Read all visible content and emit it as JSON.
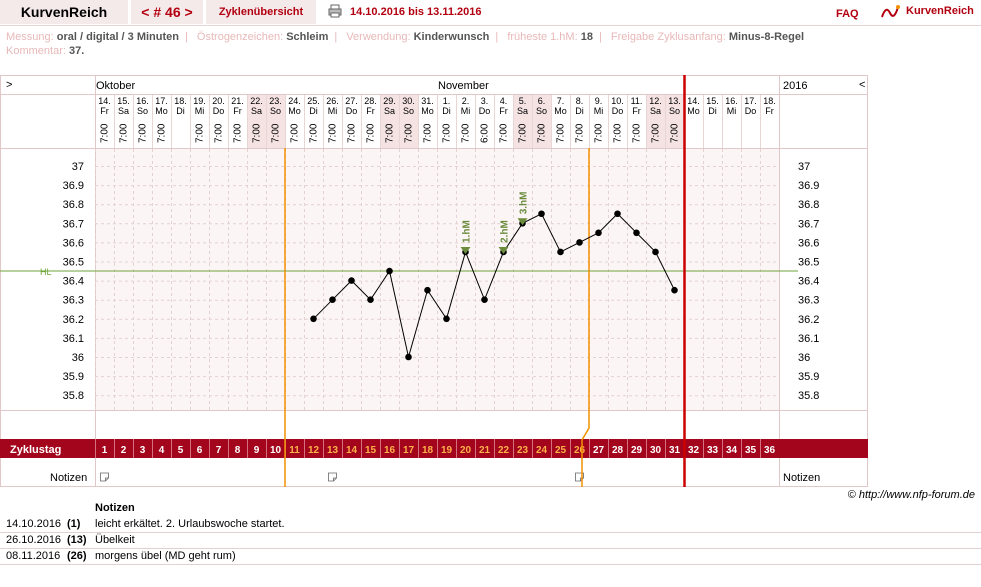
{
  "header": {
    "brand": "KurvenReich",
    "nav": "< # 46 >",
    "overview": "Zyklenübersicht",
    "range": "14.10.2016 bis 13.11.2016",
    "faq": "FAQ",
    "logo": "KurvenReich",
    "icons": [
      "printer-icon",
      "kurvenreich-logo-icon"
    ]
  },
  "meta": {
    "messung_label": "Messung:",
    "messung": "oral / digital / 3 Minuten",
    "oestrogen_label": "Östrogenzeichen:",
    "oestrogen": "Schleim",
    "verwendung_label": "Verwendung:",
    "verwendung": "Kinderwunsch",
    "hm_label": "früheste 1.hM:",
    "hm": "18",
    "freigabe_label": "Freigabe Zyklusanfang:",
    "freigabe": "Minus-8-Regel",
    "kommentar_label": "Kommentar:",
    "kommentar": "37."
  },
  "chart_data": {
    "type": "line",
    "left_nav": ">",
    "right_nav": "<",
    "month_labels": [
      "Oktober",
      "November",
      "2016"
    ],
    "zyklustag_label": "Zyklustag",
    "notizen_label": "Notizen",
    "x": [
      "14.",
      "15.",
      "16.",
      "17.",
      "18.",
      "19.",
      "20.",
      "21.",
      "22.",
      "23.",
      "24.",
      "25.",
      "26.",
      "27.",
      "28.",
      "29.",
      "30.",
      "31.",
      "1.",
      "2.",
      "3.",
      "4.",
      "5.",
      "6.",
      "7.",
      "8.",
      "9.",
      "10.",
      "11.",
      "12.",
      "13.",
      "14.",
      "15.",
      "16.",
      "17.",
      "18."
    ],
    "weekdays": [
      "Fr",
      "Sa",
      "So",
      "Mo",
      "Di",
      "Mi",
      "Do",
      "Fr",
      "Sa",
      "So",
      "Mo",
      "Di",
      "Mi",
      "Do",
      "Fr",
      "Sa",
      "So",
      "Mo",
      "Di",
      "Mi",
      "Do",
      "Fr",
      "Sa",
      "So",
      "Mo",
      "Di",
      "Mi",
      "Do",
      "Fr",
      "Sa",
      "So",
      "Mo",
      "Di",
      "Mi",
      "Do",
      "Fr"
    ],
    "times": [
      "7:00",
      "7:00",
      "7:00",
      "7:00",
      "",
      "7:00",
      "7:00",
      "7:00",
      "7:00",
      "7:00",
      "7:00",
      "7:00",
      "7:00",
      "7:00",
      "7:00",
      "7:00",
      "7:00",
      "7:00",
      "7:00",
      "7:00",
      "6:00",
      "7:00",
      "7:00",
      "7:00",
      "7:00",
      "7:00",
      "7:00",
      "7:00",
      "7:00",
      "7:00",
      "7:00",
      "",
      "",
      "",
      "",
      ""
    ],
    "cycle_days": [
      "1",
      "2",
      "3",
      "4",
      "5",
      "6",
      "7",
      "8",
      "9",
      "10",
      "11",
      "12",
      "13",
      "14",
      "15",
      "16",
      "17",
      "18",
      "19",
      "20",
      "21",
      "22",
      "23",
      "24",
      "25",
      "26",
      "27",
      "28",
      "29",
      "30",
      "31",
      "32",
      "33",
      "34",
      "35",
      "36"
    ],
    "y": [
      null,
      null,
      null,
      null,
      null,
      null,
      null,
      null,
      null,
      null,
      null,
      36.2,
      36.3,
      36.4,
      36.3,
      36.45,
      36.0,
      36.35,
      36.2,
      36.55,
      36.3,
      36.55,
      36.7,
      36.75,
      36.55,
      36.6,
      36.65,
      36.75,
      36.65,
      36.55,
      36.35,
      null,
      null,
      null,
      null,
      null
    ],
    "ylim": [
      35.7,
      37.1
    ],
    "yticks": [
      "35.8",
      "35.9",
      "36",
      "36.1",
      "36.2",
      "36.3",
      "36.4",
      "36.5",
      "36.6",
      "36.7",
      "36.8",
      "36.9",
      "37"
    ],
    "hl_value": 36.45,
    "hl_label": "HL",
    "markers": [
      {
        "day": 20,
        "label": "1.hM"
      },
      {
        "day": 22,
        "label": "2.hM"
      },
      {
        "day": 23,
        "label": "3.hM"
      }
    ],
    "highlight_days": [
      9,
      10,
      16,
      17,
      23,
      24,
      30,
      31
    ],
    "orange_lines_after_day": [
      10,
      26
    ],
    "red_line_after_day": 31,
    "note_days": [
      1,
      13,
      26
    ],
    "colors": {
      "curve": "#000000",
      "orange": "#f39200",
      "red": "#cc0000",
      "hl": "#6ea33a",
      "marker": "#6a8c3c",
      "band": "#a3061c",
      "weekend": "#f5e3e3"
    }
  },
  "credit": "© http://www.nfp-forum.de",
  "notes": {
    "header": "Notizen",
    "rows": [
      {
        "date": "14.10.2016",
        "cycle": "(1)",
        "text": "leicht erkältet. 2. Urlaubswoche startet."
      },
      {
        "date": "26.10.2016",
        "cycle": "(13)",
        "text": "Übelkeit"
      },
      {
        "date": "08.11.2016",
        "cycle": "(26)",
        "text": "morgens übel (MD geht rum)"
      }
    ]
  }
}
